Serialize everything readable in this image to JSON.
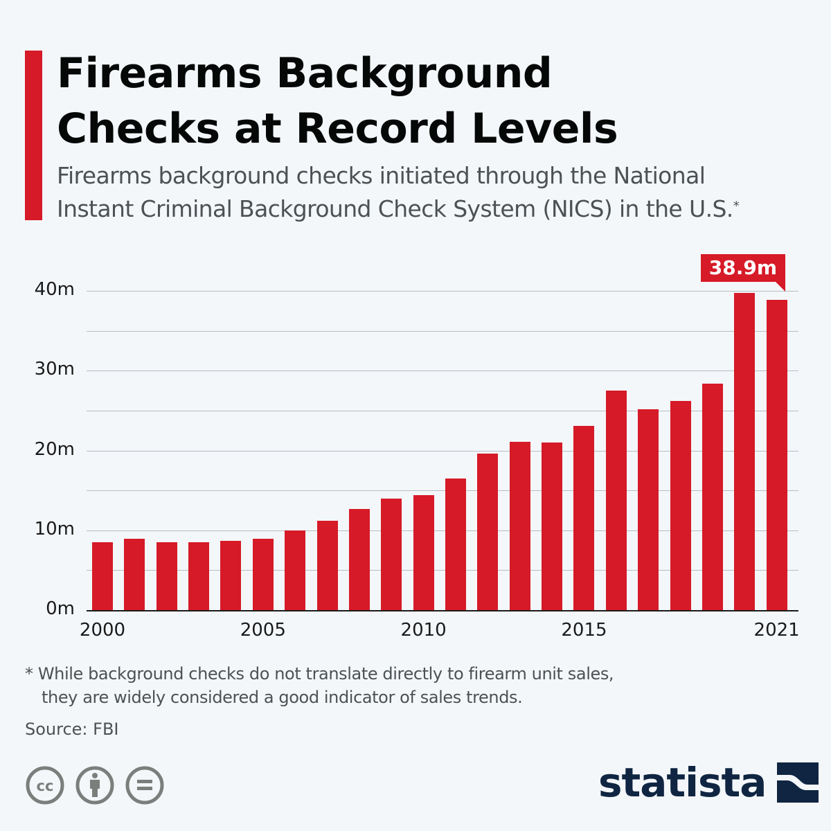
{
  "header": {
    "title_line1": "Firearms Background",
    "title_line2": "Checks at Record Levels",
    "subtitle_line1": "Firearms background checks initiated through the National",
    "subtitle_line2": "Instant Criminal Background Check System (NICS) in the U.S.",
    "subtitle_marker": "*"
  },
  "colors": {
    "accent": "#d61a27",
    "background": "#f4f7fa",
    "brand": "#0f2541",
    "gridline": "#b7bcc0",
    "text_muted": "#4c5154"
  },
  "chart_data": {
    "type": "bar",
    "title": "Firearms Background Checks at Record Levels",
    "subtitle": "Firearms background checks initiated through the National Instant Criminal Background Check System (NICS) in the U.S.*",
    "xlabel": "",
    "ylabel": "",
    "unit": "m",
    "categories": [
      "2000",
      "2001",
      "2002",
      "2003",
      "2004",
      "2005",
      "2006",
      "2007",
      "2008",
      "2009",
      "2010",
      "2011",
      "2012",
      "2013",
      "2014",
      "2015",
      "2016",
      "2017",
      "2018",
      "2019",
      "2020",
      "2021"
    ],
    "values": [
      8.5,
      8.9,
      8.5,
      8.5,
      8.7,
      8.9,
      10.0,
      11.2,
      12.7,
      14.0,
      14.4,
      16.5,
      19.6,
      21.1,
      21.0,
      23.1,
      27.5,
      25.2,
      26.2,
      28.4,
      39.7,
      38.9
    ],
    "ylim": [
      0,
      40
    ],
    "yticks": [
      "0m",
      "10m",
      "20m",
      "30m",
      "40m"
    ],
    "ytick_values": [
      0,
      10,
      20,
      30,
      40
    ],
    "minor_gridlines": [
      5,
      15,
      25,
      35
    ],
    "xtick_labels": [
      "2000",
      "2005",
      "2010",
      "2015",
      "2021"
    ],
    "xtick_indices": [
      0,
      5,
      10,
      15,
      21
    ],
    "grid": true,
    "legend": null,
    "annotations": [
      {
        "category": "2021",
        "label": "38.9m"
      }
    ]
  },
  "footer": {
    "footnote_line1": "* While background checks do not translate directly to firearm unit sales,",
    "footnote_line2": "they are widely considered a good indicator of sales trends.",
    "source": "Source: FBI",
    "license_icons": [
      "cc-icon",
      "attribution-icon",
      "no-derivatives-icon"
    ],
    "brand": "statista"
  }
}
